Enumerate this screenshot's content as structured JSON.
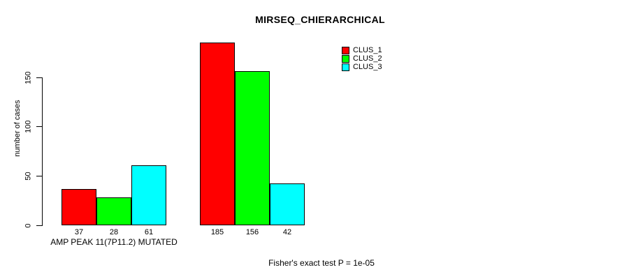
{
  "figure": {
    "background": "#FFFFFF"
  },
  "chart_data": {
    "type": "bar",
    "title": "MIRSEQ_CHIERARCHICAL",
    "ylabel": "number of cases",
    "xlabel": "",
    "ylim": [
      0,
      150
    ],
    "yticks": [
      0,
      50,
      100,
      150
    ],
    "grid": false,
    "legend_position": "top-right",
    "show_values_under_bars": true,
    "categories": [
      "AMP PEAK 11(7P11.2) MUTATED",
      ""
    ],
    "series": [
      {
        "name": "CLUS_1",
        "color": "#FF0000",
        "values": [
          37,
          185
        ]
      },
      {
        "name": "CLUS_2",
        "color": "#00FF00",
        "values": [
          28,
          156
        ]
      },
      {
        "name": "CLUS_3",
        "color": "#00FFFF",
        "values": [
          61,
          42
        ]
      }
    ],
    "annotation": "Fisher's exact test P = 1e-05",
    "axis_color": "#000000",
    "bar_border_color": "#000000"
  }
}
